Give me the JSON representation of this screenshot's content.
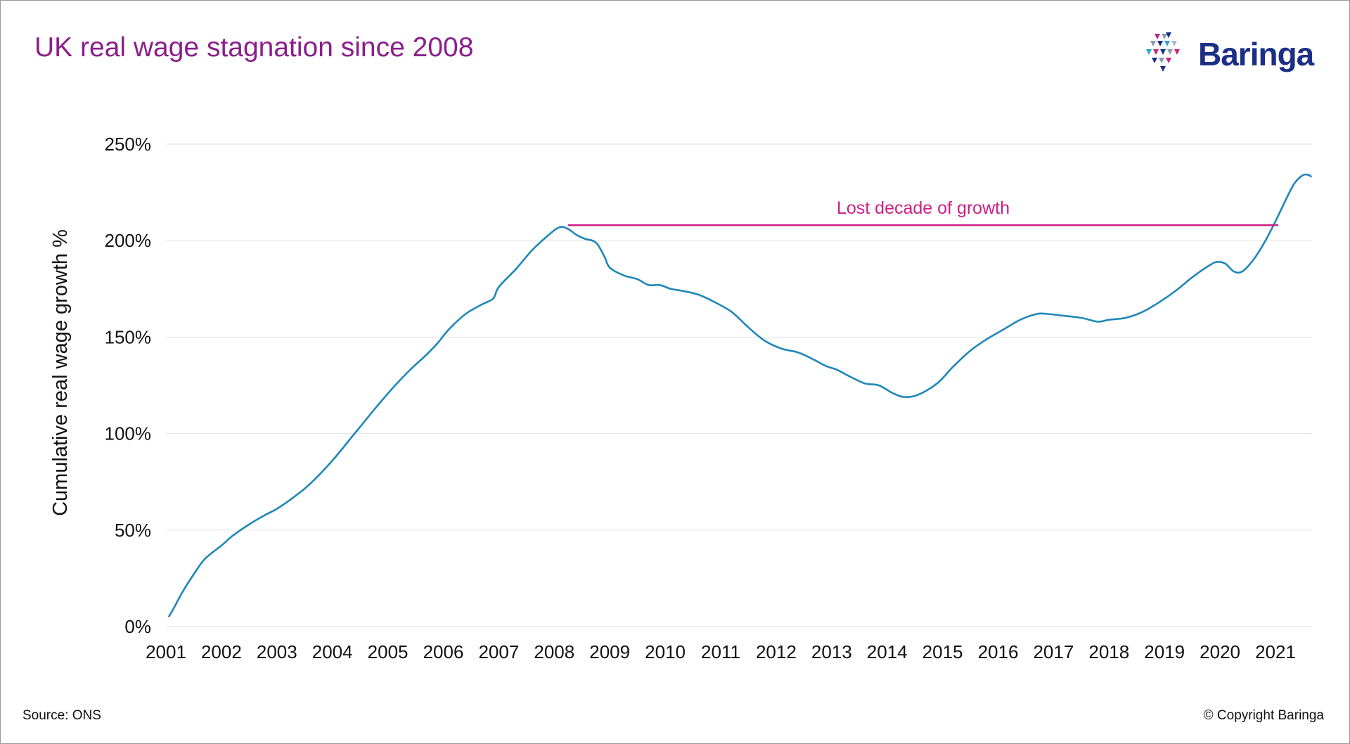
{
  "header": {
    "title": "UK real wage stagnation since 2008",
    "logo_text": "Baringa"
  },
  "footer": {
    "source": "Source: ONS",
    "copyright": "© Copyright Baringa"
  },
  "colors": {
    "title": "#8b1f8b",
    "line": "#1f87b8",
    "annotation": "#cc1f86",
    "grid": "#e3e3e3",
    "logo_text": "#1c2f87"
  },
  "chart_data": {
    "type": "line",
    "title": "UK real wage stagnation since 2008",
    "xlabel": "",
    "ylabel": "Cumulative real wage growth %",
    "ylim": [
      0,
      250
    ],
    "xlim": [
      2001,
      2021.7
    ],
    "yticks": [
      0,
      50,
      100,
      150,
      200,
      250
    ],
    "ytick_labels": [
      "0%",
      "50%",
      "100%",
      "150%",
      "200%",
      "250%"
    ],
    "xticks": [
      2001,
      2002,
      2003,
      2004,
      2005,
      2006,
      2007,
      2008,
      2009,
      2010,
      2011,
      2012,
      2013,
      2014,
      2015,
      2016,
      2017,
      2018,
      2019,
      2020,
      2021
    ],
    "xtick_labels": [
      "2001",
      "2002",
      "2003",
      "2004",
      "2005",
      "2006",
      "2007",
      "2008",
      "2009",
      "2010",
      "2011",
      "2012",
      "2013",
      "2014",
      "2015",
      "2016",
      "2017",
      "2018",
      "2019",
      "2020",
      "2021"
    ],
    "grid": "horizontal",
    "series": [
      {
        "name": "",
        "x": [
          2001.05,
          2001.15,
          2001.3,
          2001.5,
          2001.7,
          2002.0,
          2002.2,
          2002.5,
          2002.8,
          2003.0,
          2003.3,
          2003.6,
          2004.0,
          2004.4,
          2004.8,
          2005.1,
          2005.4,
          2005.7,
          2005.9,
          2006.1,
          2006.4,
          2006.7,
          2006.9,
          2007.0,
          2007.3,
          2007.6,
          2007.9,
          2008.1,
          2008.25,
          2008.4,
          2008.55,
          2008.75,
          2008.9,
          2009.0,
          2009.25,
          2009.5,
          2009.7,
          2009.9,
          2010.1,
          2010.3,
          2010.6,
          2010.9,
          2011.2,
          2011.5,
          2011.8,
          2012.1,
          2012.4,
          2012.7,
          2012.9,
          2013.1,
          2013.3,
          2013.6,
          2013.85,
          2014.1,
          2014.3,
          2014.55,
          2014.9,
          2015.2,
          2015.5,
          2015.8,
          2016.1,
          2016.4,
          2016.7,
          2016.9,
          2017.2,
          2017.5,
          2017.8,
          2018.0,
          2018.3,
          2018.6,
          2018.9,
          2019.2,
          2019.5,
          2019.8,
          2019.95,
          2020.1,
          2020.25,
          2020.4,
          2020.6,
          2020.8,
          2021.0,
          2021.2,
          2021.35,
          2021.5,
          2021.6,
          2021.65
        ],
        "values": [
          5,
          10,
          18,
          27,
          35,
          42,
          47,
          53,
          58,
          61,
          67,
          74,
          86,
          100,
          114,
          124,
          133,
          141,
          147,
          154,
          162,
          167,
          170,
          176,
          185,
          195,
          203,
          207,
          206,
          203,
          201,
          199,
          192,
          186,
          182,
          180,
          177,
          177,
          175,
          174,
          172,
          168,
          163,
          155,
          148,
          144,
          142,
          138,
          135,
          133,
          130,
          126,
          125,
          121,
          119,
          120,
          126,
          135,
          143,
          149,
          154,
          159,
          162,
          162,
          161,
          160,
          158,
          159,
          160,
          163,
          168,
          174,
          181,
          187,
          189,
          188,
          184,
          184,
          190,
          199,
          210,
          222,
          230,
          234,
          234,
          233
        ]
      }
    ],
    "annotations": [
      {
        "text": "Lost decade of growth",
        "type": "hline",
        "y": 208,
        "x_start": 2008.25,
        "x_end": 2021.05
      }
    ]
  }
}
